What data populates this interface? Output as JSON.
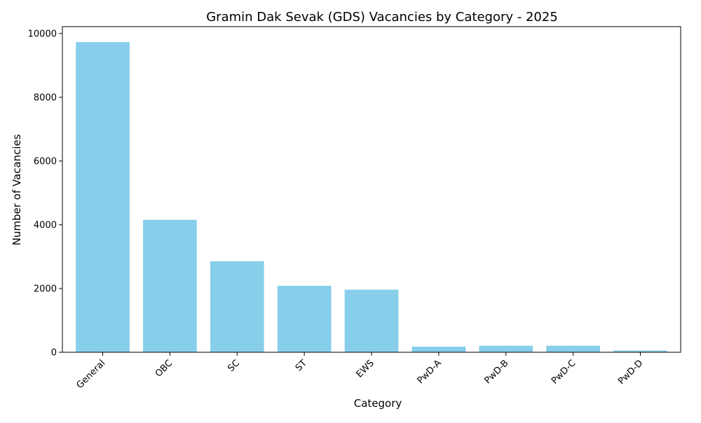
{
  "chart_data": {
    "type": "bar",
    "title": "Gramin Dak Sevak (GDS) Vacancies by Category - 2025",
    "xlabel": "Category",
    "ylabel": "Number of Vacancies",
    "categories": [
      "General",
      "OBC",
      "SC",
      "ST",
      "EWS",
      "PwD-A",
      "PwD-B",
      "PwD-C",
      "PwD-D"
    ],
    "values": [
      9730,
      4155,
      2855,
      2085,
      1965,
      175,
      205,
      205,
      55
    ],
    "ylim": [
      0,
      10216
    ],
    "yticks": [
      0,
      2000,
      4000,
      6000,
      8000,
      10000
    ],
    "ytick_labels": [
      "0",
      "2000",
      "4000",
      "6000",
      "8000",
      "10000"
    ],
    "bar_color": "#87CEEB",
    "grid": false,
    "legend": "none"
  }
}
